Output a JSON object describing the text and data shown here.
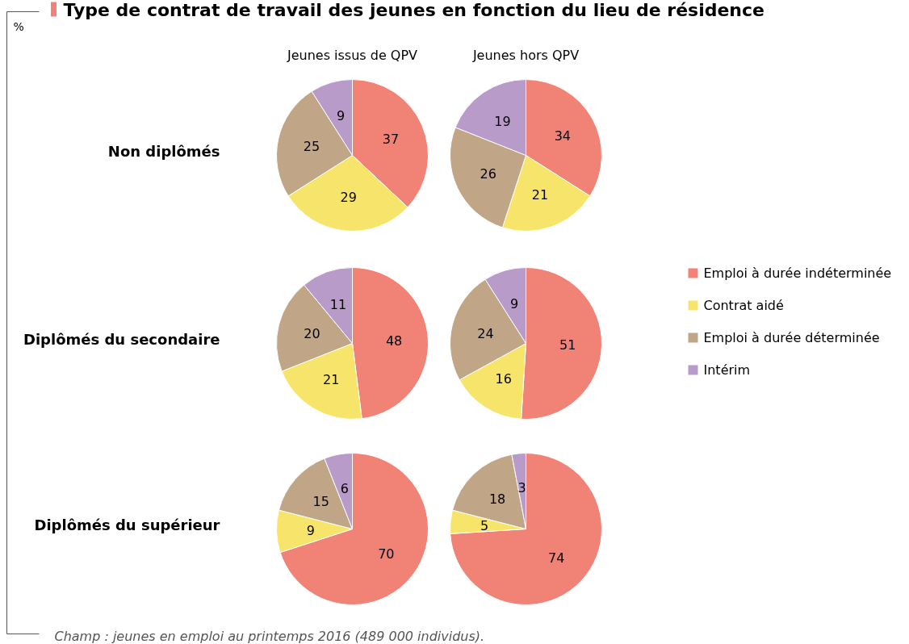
{
  "chart_data": [
    {
      "type": "pie",
      "title": "Jeunes issus de QPV",
      "ylabel": "Non diplômés",
      "legend": "right",
      "annotations": [
        "Type de contrat de travail des jeunes en fonction du lieu de résidence",
        "%",
        "Champ : jeunes en emploi au printemps 2016 (489 000 individus)."
      ],
      "categories": [
        "Emploi à durée indéterminée",
        "Contrat aidé",
        "Emploi à durée déterminée",
        "Intérim"
      ],
      "values": [
        37,
        29,
        25,
        9
      ],
      "colors": [
        "#f08276",
        "#f7e56b",
        "#c0a586",
        "#b99bc9"
      ],
      "data_labels": true
    },
    {
      "type": "pie",
      "title": "Jeunes hors QPV",
      "categories": [
        null,
        null,
        null,
        null
      ],
      "values": [
        34,
        21,
        26,
        19
      ],
      "colors": [
        "#f08276",
        "#f7e56b",
        "#c0a586",
        "#b99bc9"
      ],
      "data_labels": true
    },
    {
      "type": "pie",
      "ylabel": "Diplômés du secondaire",
      "categories": [
        null,
        null,
        null,
        null
      ],
      "values": [
        48,
        21,
        20,
        11
      ],
      "colors": [
        "#f08276",
        "#f7e56b",
        "#c0a586",
        "#b99bc9"
      ],
      "data_labels": true
    },
    {
      "type": "pie",
      "categories": [
        null,
        null,
        null,
        null
      ],
      "values": [
        51,
        16,
        24,
        9
      ],
      "colors": [
        "#f08276",
        "#f7e56b",
        "#c0a586",
        "#b99bc9"
      ],
      "data_labels": true
    },
    {
      "type": "pie",
      "ylabel": "Diplômés du supérieur",
      "categories": [
        null,
        null,
        null,
        null
      ],
      "values": [
        70,
        9,
        15,
        6
      ],
      "colors": [
        "#f08276",
        "#f7e56b",
        "#c0a586",
        "#b99bc9"
      ],
      "data_labels": true
    },
    {
      "type": "pie",
      "categories": [
        null,
        null,
        null,
        null
      ],
      "values": [
        74,
        5,
        18,
        3
      ],
      "colors": [
        "#f08276",
        "#f7e56b",
        "#c0a586",
        "#b99bc9"
      ],
      "data_labels": true
    }
  ]
}
